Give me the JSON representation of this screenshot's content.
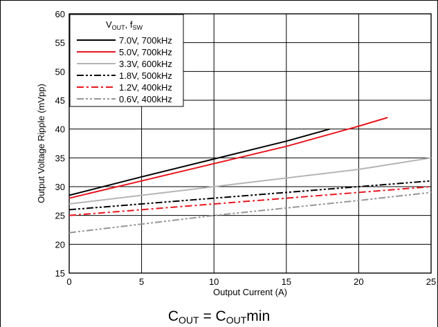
{
  "chart_data": {
    "type": "line",
    "title": "",
    "xlabel": "Output Current (A)",
    "ylabel": "Output Voltage Ripple (mVpp)",
    "xlim": [
      0,
      25
    ],
    "ylim": [
      15,
      60
    ],
    "xticks": [
      0,
      5,
      10,
      15,
      20,
      25
    ],
    "yticks": [
      15,
      20,
      25,
      30,
      35,
      40,
      45,
      50,
      55,
      60
    ],
    "grid": true,
    "legend_position": "top-left",
    "legend_title": {
      "main": "V",
      "sub": "OUT",
      "rest": ", f",
      "sub2": "SW"
    },
    "series": [
      {
        "name": "7.0V, 700kHz",
        "color": "#000000",
        "dash": "solid",
        "x": [
          0,
          5,
          10,
          15,
          18
        ],
        "y": [
          28.5,
          31.7,
          34.8,
          37.9,
          40
        ]
      },
      {
        "name": "5.0V, 700kHz",
        "color": "#e8141c",
        "dash": "solid",
        "x": [
          0,
          5,
          10,
          15,
          20,
          22
        ],
        "y": [
          28,
          31,
          34,
          37,
          40.5,
          42
        ]
      },
      {
        "name": "3.3V, 600kHz",
        "color": "#b4b4b4",
        "dash": "solid",
        "x": [
          0,
          10,
          20,
          25
        ],
        "y": [
          27,
          30,
          33,
          35
        ]
      },
      {
        "name": "1.8V, 500kHz",
        "color": "#000000",
        "dash": "dashdotdot",
        "x": [
          0,
          10,
          20,
          25
        ],
        "y": [
          26,
          28,
          30,
          31
        ]
      },
      {
        "name": "1.2V, 400kHz",
        "color": "#e8141c",
        "dash": "dashdot",
        "x": [
          0,
          10,
          20,
          25
        ],
        "y": [
          25,
          27,
          29,
          30
        ]
      },
      {
        "name": "0.6V, 400kHz",
        "color": "#969696",
        "dash": "dashdotdot",
        "x": [
          0,
          10,
          20,
          25
        ],
        "y": [
          22,
          25,
          27.6,
          29
        ]
      }
    ]
  },
  "caption": {
    "c1": "C",
    "s1": "OUT",
    "mid": " = C",
    "s2": "OUT",
    "end": "min"
  }
}
